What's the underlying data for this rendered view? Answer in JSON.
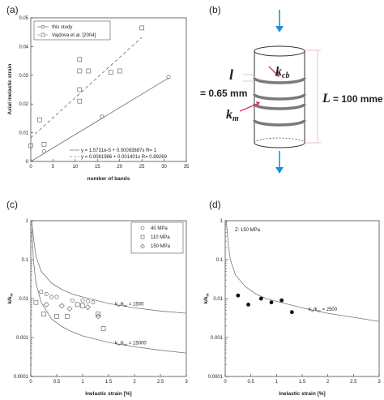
{
  "panel_labels": {
    "a": "(a)",
    "b": "(b)",
    "c": "(c)",
    "d": "(d)"
  },
  "chart_data": [
    {
      "id": "a",
      "type": "scatter",
      "ylabel": "Axial inelastic strain",
      "xlabel": "number of bands",
      "xlim": [
        0,
        35
      ],
      "ylim": [
        0,
        0.05
      ],
      "xticks": [
        "0",
        "5",
        "10",
        "15",
        "20",
        "25",
        "30",
        "35"
      ],
      "yticks": [
        "0",
        "0.01",
        "0.02",
        "0.03",
        "0.04",
        "0.05"
      ],
      "series": [
        {
          "name": "this study",
          "marker": "circle",
          "x": [
            3,
            16,
            31
          ],
          "y": [
            0.0035,
            0.0156,
            0.0294
          ],
          "fit": {
            "style": "solid",
            "x": [
              0,
              31
            ],
            "y": [
              1.57e-05,
              0.02906
            ],
            "label": "y = 1.5731e-5 + 0.00093887x   R= 1"
          }
        },
        {
          "name": "Vajdova et al. [2004]",
          "marker": "square",
          "x": [
            0,
            2,
            3,
            11,
            11,
            11,
            11,
            13,
            18,
            20,
            25
          ],
          "y": [
            0.0055,
            0.0145,
            0.006,
            0.021,
            0.025,
            0.0315,
            0.0355,
            0.0315,
            0.031,
            0.0315,
            0.0465
          ],
          "fit": {
            "style": "dashed",
            "x": [
              0,
              25
            ],
            "y": [
              0.0081986,
              0.04325
            ],
            "label": "y = 0.0081986 + 0.001401x   R= 0.89269"
          }
        }
      ]
    },
    {
      "id": "c",
      "type": "scatter",
      "ylabel": "k/k",
      "ylabel_sub": "m",
      "xlabel": "Inelastic strain [%]",
      "xscale": "linear",
      "yscale": "log",
      "xlim": [
        0,
        3
      ],
      "ylim": [
        0.0001,
        1
      ],
      "xticks": [
        "0",
        "0.5",
        "1",
        "1.5",
        "2",
        "2.5",
        "3"
      ],
      "yticks": [
        "1",
        "0.1",
        "0.01",
        "0.001",
        "0.0001"
      ],
      "series": [
        {
          "name": "40 MPa",
          "marker": "circle",
          "x": [
            0.2,
            0.3,
            0.4,
            0.5,
            0.8,
            1.0,
            1.1,
            1.2
          ],
          "y": [
            0.015,
            0.013,
            0.011,
            0.011,
            0.009,
            0.009,
            0.0085,
            0.008
          ]
        },
        {
          "name": "110 MPa",
          "marker": "square",
          "x": [
            0.1,
            0.25,
            0.5,
            0.7,
            0.9,
            1.0,
            1.3,
            1.4
          ],
          "y": [
            0.008,
            0.004,
            0.0035,
            0.0035,
            0.007,
            0.0065,
            0.004,
            0.0017
          ]
        },
        {
          "name": "150 MPa",
          "marker": "diamond",
          "x": [
            0.3,
            0.6,
            0.75,
            1.1,
            1.3
          ],
          "y": [
            0.007,
            0.0065,
            0.0055,
            0.006,
            0.0035
          ]
        }
      ],
      "curves": [
        {
          "label": "k",
          "sub1": "m",
          "mid": "/k",
          "sub2": "cb",
          "value": " = 1500",
          "points": [
            [
              0.02,
              1
            ],
            [
              0.06,
              0.3
            ],
            [
              0.1,
              0.12
            ],
            [
              0.2,
              0.05
            ],
            [
              0.4,
              0.025
            ],
            [
              0.6,
              0.017
            ],
            [
              0.8,
              0.013
            ],
            [
              1.0,
              0.011
            ],
            [
              1.5,
              0.0075
            ],
            [
              2.0,
              0.0058
            ],
            [
              2.5,
              0.0048
            ],
            [
              3.0,
              0.0042
            ]
          ]
        },
        {
          "label": "k",
          "sub1": "m",
          "mid": "/k",
          "sub2": "cb",
          "value": " = 15000",
          "points": [
            [
              0.02,
              0.6
            ],
            [
              0.05,
              0.1
            ],
            [
              0.1,
              0.025
            ],
            [
              0.2,
              0.008
            ],
            [
              0.4,
              0.003
            ],
            [
              0.6,
              0.0019
            ],
            [
              0.8,
              0.0014
            ],
            [
              1.0,
              0.0011
            ],
            [
              1.5,
              0.00075
            ],
            [
              2.0,
              0.00058
            ],
            [
              2.5,
              0.00047
            ],
            [
              3.0,
              0.0004
            ]
          ]
        }
      ]
    },
    {
      "id": "d",
      "type": "scatter",
      "ylabel": "k/k",
      "ylabel_sub": "m",
      "xlabel": "Inelastic strain [%]",
      "yscale": "log",
      "xlim": [
        0,
        3
      ],
      "ylim": [
        0.0001,
        1
      ],
      "xticks": [
        "0",
        "0.5",
        "1",
        "1.5",
        "2",
        "2.5",
        "3"
      ],
      "yticks": [
        "1",
        "0.1",
        "0.01",
        "0.001",
        "0.0001"
      ],
      "annotation": "Z: 150 MPa",
      "series": [
        {
          "name": "",
          "marker": "filled-circle",
          "x": [
            0.25,
            0.45,
            0.7,
            0.9,
            1.1,
            1.3
          ],
          "y": [
            0.012,
            0.007,
            0.01,
            0.008,
            0.009,
            0.0045
          ]
        }
      ],
      "curves": [
        {
          "label": "k",
          "sub1": "m",
          "mid": "/k",
          "sub2": "cb",
          "value": " = 2500",
          "points": [
            [
              0.02,
              1
            ],
            [
              0.06,
              0.25
            ],
            [
              0.1,
              0.1
            ],
            [
              0.2,
              0.04
            ],
            [
              0.4,
              0.02
            ],
            [
              0.6,
              0.013
            ],
            [
              0.8,
              0.01
            ],
            [
              1.0,
              0.0085
            ],
            [
              1.5,
              0.0058
            ],
            [
              2.0,
              0.0042
            ],
            [
              2.5,
              0.0033
            ],
            [
              3.0,
              0.0026
            ]
          ]
        }
      ]
    }
  ],
  "diagram_b": {
    "l_symbol": "l",
    "l_value": "= 0.65 mm",
    "L_symbol": "L",
    "L_value": "= 100 mme",
    "kcb": "k",
    "kcb_sub": "cb",
    "km": "k",
    "km_sub": "m"
  },
  "colors": {
    "arrow": "#1f8fd6",
    "pink": "#d1307a",
    "band": "#7a7a7a"
  }
}
